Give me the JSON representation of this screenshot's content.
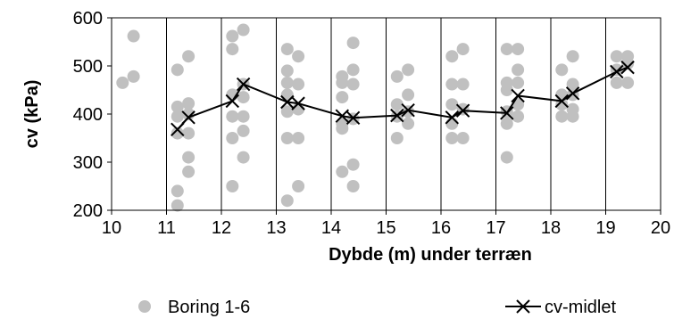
{
  "chart_data": {
    "type": "scatter",
    "xlabel": "Dybde (m) under terræn",
    "ylabel": "cv (kPa)",
    "xlim": [
      10,
      20
    ],
    "ylim": [
      200,
      600
    ],
    "x_ticks": [
      "10",
      "11",
      "12",
      "13",
      "14",
      "15",
      "16",
      "17",
      "18",
      "19",
      "20"
    ],
    "y_ticks": [
      "200",
      "300",
      "400",
      "500",
      "600"
    ],
    "grid": "vertical",
    "legend_position": "bottom",
    "series": [
      {
        "name": "Boring 1-6",
        "style": "points",
        "color": "#c0c0c0",
        "points": [
          [
            10.2,
            465
          ],
          [
            10.4,
            478
          ],
          [
            10.4,
            562
          ],
          [
            11.2,
            210
          ],
          [
            11.2,
            240
          ],
          [
            11.2,
            360
          ],
          [
            11.2,
            395
          ],
          [
            11.2,
            415
          ],
          [
            11.2,
            492
          ],
          [
            11.4,
            280
          ],
          [
            11.4,
            310
          ],
          [
            11.4,
            360
          ],
          [
            11.4,
            400
          ],
          [
            11.4,
            422
          ],
          [
            11.4,
            520
          ],
          [
            12.2,
            250
          ],
          [
            12.2,
            350
          ],
          [
            12.2,
            395
          ],
          [
            12.2,
            440
          ],
          [
            12.2,
            535
          ],
          [
            12.2,
            562
          ],
          [
            12.4,
            310
          ],
          [
            12.4,
            365
          ],
          [
            12.4,
            395
          ],
          [
            12.4,
            435
          ],
          [
            12.4,
            462
          ],
          [
            12.4,
            575
          ],
          [
            13.2,
            220
          ],
          [
            13.2,
            350
          ],
          [
            13.2,
            405
          ],
          [
            13.2,
            440
          ],
          [
            13.2,
            465
          ],
          [
            13.2,
            490
          ],
          [
            13.2,
            535
          ],
          [
            13.4,
            250
          ],
          [
            13.4,
            350
          ],
          [
            13.4,
            410
          ],
          [
            13.4,
            462
          ],
          [
            13.4,
            520
          ],
          [
            14.2,
            280
          ],
          [
            14.2,
            370
          ],
          [
            14.2,
            380
          ],
          [
            14.2,
            435
          ],
          [
            14.2,
            465
          ],
          [
            14.2,
            478
          ],
          [
            14.4,
            250
          ],
          [
            14.4,
            295
          ],
          [
            14.4,
            390
          ],
          [
            14.4,
            462
          ],
          [
            14.4,
            492
          ],
          [
            14.4,
            548
          ],
          [
            15.2,
            350
          ],
          [
            15.2,
            395
          ],
          [
            15.2,
            420
          ],
          [
            15.2,
            478
          ],
          [
            15.4,
            380
          ],
          [
            15.4,
            405
          ],
          [
            15.4,
            440
          ],
          [
            15.4,
            492
          ],
          [
            16.2,
            350
          ],
          [
            16.2,
            380
          ],
          [
            16.2,
            420
          ],
          [
            16.2,
            462
          ],
          [
            16.2,
            520
          ],
          [
            16.4,
            350
          ],
          [
            16.4,
            410
          ],
          [
            16.4,
            462
          ],
          [
            16.4,
            535
          ],
          [
            17.2,
            310
          ],
          [
            17.2,
            380
          ],
          [
            17.2,
            405
          ],
          [
            17.2,
            450
          ],
          [
            17.2,
            465
          ],
          [
            17.2,
            535
          ],
          [
            17.4,
            395
          ],
          [
            17.4,
            420
          ],
          [
            17.4,
            465
          ],
          [
            17.4,
            492
          ],
          [
            17.4,
            535
          ],
          [
            18.2,
            395
          ],
          [
            18.2,
            420
          ],
          [
            18.2,
            440
          ],
          [
            18.2,
            492
          ],
          [
            18.4,
            395
          ],
          [
            18.4,
            410
          ],
          [
            18.4,
            440
          ],
          [
            18.4,
            462
          ],
          [
            18.4,
            520
          ],
          [
            19.2,
            465
          ],
          [
            19.2,
            492
          ],
          [
            19.2,
            520
          ],
          [
            19.4,
            465
          ],
          [
            19.4,
            505
          ],
          [
            19.4,
            520
          ]
        ]
      },
      {
        "name": "cv-midlet",
        "style": "line-x-markers",
        "color": "#000000",
        "points": [
          [
            11.2,
            368
          ],
          [
            11.4,
            393
          ],
          [
            12.2,
            427
          ],
          [
            12.4,
            462
          ],
          [
            13.2,
            425
          ],
          [
            13.4,
            422
          ],
          [
            14.2,
            396
          ],
          [
            14.4,
            392
          ],
          [
            15.2,
            397
          ],
          [
            15.4,
            408
          ],
          [
            16.2,
            393
          ],
          [
            16.4,
            407
          ],
          [
            17.2,
            402
          ],
          [
            17.4,
            438
          ],
          [
            18.2,
            427
          ],
          [
            18.4,
            443
          ],
          [
            19.2,
            488
          ],
          [
            19.4,
            497
          ]
        ]
      }
    ]
  }
}
